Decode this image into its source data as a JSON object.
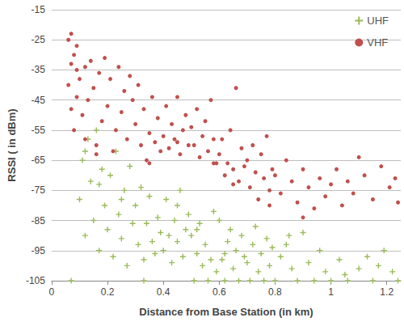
{
  "chart_data": {
    "type": "scatter",
    "x_label": "Distance from Base Station (in km)",
    "y_label": "RSSI ( in dBm)",
    "xlim": [
      0,
      1.25
    ],
    "xticks": [
      0,
      0.2,
      0.4,
      0.6,
      0.8,
      1,
      1.2
    ],
    "ylim": [
      -105,
      -15
    ],
    "yticks": [
      -105,
      -95,
      -85,
      -75,
      -65,
      -55,
      -45,
      -35,
      -25,
      -15
    ],
    "grid": true,
    "legend": "upper right",
    "series": [
      {
        "name": "UHF",
        "color": "#9bbb59",
        "marker": "plus",
        "x": [
          0.1,
          0.11,
          0.12,
          0.13,
          0.14,
          0.15,
          0.16,
          0.17,
          0.18,
          0.19,
          0.2,
          0.21,
          0.22,
          0.23,
          0.24,
          0.25,
          0.26,
          0.27,
          0.28,
          0.29,
          0.3,
          0.31,
          0.32,
          0.33,
          0.34,
          0.35,
          0.36,
          0.37,
          0.38,
          0.39,
          0.4,
          0.41,
          0.42,
          0.43,
          0.44,
          0.45,
          0.46,
          0.47,
          0.48,
          0.49,
          0.5,
          0.51,
          0.52,
          0.53,
          0.54,
          0.55,
          0.56,
          0.57,
          0.58,
          0.59,
          0.6,
          0.61,
          0.62,
          0.63,
          0.64,
          0.65,
          0.66,
          0.67,
          0.68,
          0.69,
          0.7,
          0.71,
          0.72,
          0.73,
          0.74,
          0.75,
          0.76,
          0.77,
          0.78,
          0.79,
          0.8,
          0.82,
          0.84,
          0.86,
          0.88,
          0.9,
          0.92,
          0.94,
          0.96,
          0.98,
          1.0,
          1.03,
          1.06,
          1.1,
          1.13,
          1.15,
          1.17,
          1.19,
          1.22,
          1.24,
          0.07,
          0.12,
          0.17,
          0.25,
          0.33,
          0.45,
          0.52,
          0.62,
          0.85,
          1.05
        ],
        "values": [
          -78,
          -65,
          -90,
          -58,
          -72,
          -85,
          -55,
          -95,
          -68,
          -80,
          -88,
          -70,
          -97,
          -62,
          -83,
          -91,
          -75,
          -100,
          -67,
          -86,
          -80,
          -93,
          -74,
          -98,
          -86,
          -77,
          -92,
          -96,
          -84,
          -89,
          -95,
          -78,
          -90,
          -99,
          -85,
          -92,
          -75,
          -97,
          -88,
          -83,
          -90,
          -105,
          -96,
          -86,
          -100,
          -93,
          -105,
          -98,
          -82,
          -102,
          -85,
          -98,
          -105,
          -92,
          -88,
          -101,
          -95,
          -105,
          -90,
          -97,
          -99,
          -105,
          -93,
          -87,
          -102,
          -96,
          -105,
          -91,
          -100,
          -94,
          -105,
          -97,
          -93,
          -101,
          -105,
          -89,
          -99,
          -105,
          -95,
          -102,
          -105,
          -98,
          -105,
          -101,
          -97,
          -105,
          -100,
          -95,
          -102,
          -105,
          -105,
          -62,
          -73,
          -78,
          -105,
          -80,
          -88,
          -96,
          -90,
          -103
        ]
      },
      {
        "name": "VHF",
        "color": "#c0504d",
        "marker": "circle",
        "x": [
          0.06,
          0.06,
          0.07,
          0.07,
          0.07,
          0.08,
          0.08,
          0.09,
          0.09,
          0.1,
          0.11,
          0.12,
          0.12,
          0.13,
          0.14,
          0.15,
          0.16,
          0.17,
          0.18,
          0.19,
          0.2,
          0.21,
          0.22,
          0.23,
          0.24,
          0.25,
          0.26,
          0.27,
          0.28,
          0.29,
          0.3,
          0.31,
          0.32,
          0.33,
          0.34,
          0.35,
          0.36,
          0.37,
          0.38,
          0.39,
          0.4,
          0.41,
          0.42,
          0.43,
          0.44,
          0.45,
          0.46,
          0.47,
          0.48,
          0.49,
          0.5,
          0.51,
          0.52,
          0.53,
          0.54,
          0.55,
          0.56,
          0.57,
          0.58,
          0.59,
          0.6,
          0.61,
          0.62,
          0.63,
          0.64,
          0.65,
          0.66,
          0.67,
          0.68,
          0.69,
          0.7,
          0.71,
          0.72,
          0.73,
          0.74,
          0.75,
          0.76,
          0.77,
          0.78,
          0.79,
          0.8,
          0.82,
          0.84,
          0.86,
          0.88,
          0.9,
          0.92,
          0.94,
          0.96,
          0.98,
          1.0,
          1.02,
          1.04,
          1.06,
          1.08,
          1.12,
          1.15,
          1.18,
          1.21,
          1.24,
          0.09,
          0.16,
          0.35,
          0.45,
          0.58,
          0.65,
          0.78,
          0.9,
          1.1,
          1.23
        ],
        "values": [
          -25,
          -40,
          -23,
          -33,
          -48,
          -30,
          -55,
          -27,
          -44,
          -38,
          -50,
          -34,
          -58,
          -45,
          -32,
          -41,
          -60,
          -36,
          -52,
          -31,
          -47,
          -38,
          -62,
          -55,
          -34,
          -49,
          -42,
          -58,
          -37,
          -45,
          -53,
          -40,
          -60,
          -48,
          -65,
          -56,
          -44,
          -59,
          -51,
          -62,
          -57,
          -47,
          -61,
          -53,
          -58,
          -44,
          -63,
          -55,
          -50,
          -60,
          -54,
          -60,
          -48,
          -64,
          -57,
          -52,
          -62,
          -45,
          -58,
          -66,
          -63,
          -58,
          -70,
          -66,
          -55,
          -68,
          -41,
          -72,
          -61,
          -67,
          -65,
          -74,
          -60,
          -69,
          -78,
          -63,
          -71,
          -57,
          -75,
          -68,
          -70,
          -76,
          -65,
          -72,
          -79,
          -68,
          -74,
          -81,
          -71,
          -77,
          -73,
          -68,
          -80,
          -72,
          -76,
          -70,
          -78,
          -67,
          -74,
          -79,
          -35,
          -63,
          -66,
          -59,
          -66,
          -73,
          -80,
          -84,
          -64,
          -71
        ]
      }
    ]
  }
}
